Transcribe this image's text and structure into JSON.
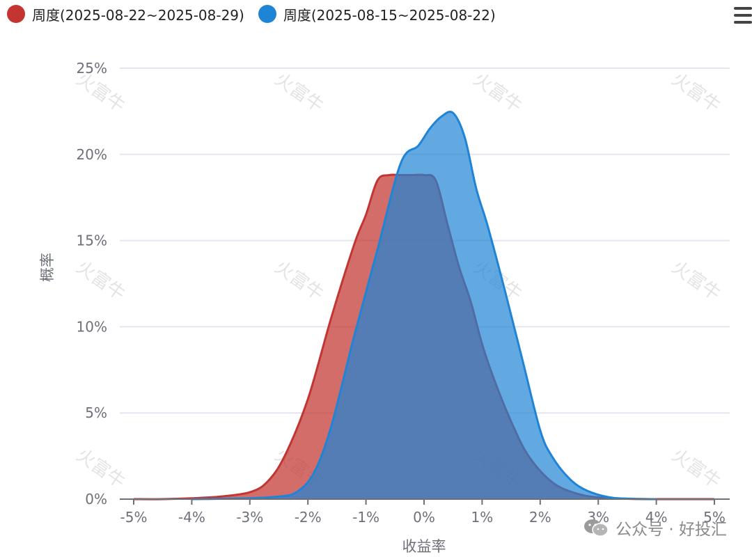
{
  "legend": {
    "series1_label": "周度(2025-08-22~2025-08-29)",
    "series2_label": "周度(2025-08-15~2025-08-22)"
  },
  "watermarks": [
    "火富牛"
  ],
  "footer": {
    "source_text": "公众号 · 好投汇"
  },
  "icons": {
    "menu": "hamburger-menu-icon",
    "wechat": "wechat-icon"
  },
  "chart_data": {
    "type": "area",
    "xlabel": "收益率",
    "ylabel": "概率",
    "x_ticks": [
      "-5%",
      "-4%",
      "-3%",
      "-2%",
      "-1%",
      "0%",
      "1%",
      "2%",
      "3%",
      "4%",
      "5%"
    ],
    "y_ticks": [
      "0%",
      "5%",
      "10%",
      "15%",
      "20%",
      "25%"
    ],
    "xlim": [
      -5,
      5
    ],
    "ylim": [
      0,
      25
    ],
    "grid": true,
    "legend_position": "top-left",
    "series": [
      {
        "name": "周度(2025-08-22~2025-08-29)",
        "color": "#c23531",
        "x": [
          -5,
          -4.5,
          -4,
          -3.5,
          -3,
          -2.7,
          -2.4,
          -2.0,
          -1.6,
          -1.2,
          -1.0,
          -0.8,
          -0.6,
          -0.4,
          -0.2,
          0,
          0.2,
          0.4,
          0.6,
          0.8,
          1.0,
          1.2,
          1.5,
          1.8,
          2.2,
          2.6,
          3.0,
          3.5,
          4,
          4.5,
          5
        ],
        "y": [
          0,
          0,
          0.05,
          0.15,
          0.4,
          1.0,
          2.5,
          5.8,
          10.5,
          14.8,
          16.5,
          18.5,
          18.8,
          18.8,
          18.8,
          18.8,
          18.5,
          16.0,
          13.5,
          11.5,
          9.0,
          7.0,
          4.5,
          2.5,
          1.0,
          0.35,
          0.1,
          0.02,
          0,
          0,
          0
        ]
      },
      {
        "name": "周度(2025-08-15~2025-08-22)",
        "color": "#1f84d6",
        "x": [
          -4,
          -3.5,
          -3,
          -2.5,
          -2.2,
          -1.9,
          -1.6,
          -1.2,
          -0.8,
          -0.4,
          -0.1,
          0.1,
          0.3,
          0.5,
          0.7,
          0.9,
          1.1,
          1.4,
          1.7,
          2.0,
          2.2,
          2.5,
          2.8,
          3.2,
          3.6,
          4
        ],
        "y": [
          0,
          0.02,
          0.05,
          0.15,
          0.4,
          1.5,
          4.2,
          9.5,
          14.5,
          19.5,
          20.5,
          21.5,
          22.2,
          22.4,
          21.0,
          18.0,
          15.8,
          12.0,
          8.0,
          4.0,
          2.5,
          1.2,
          0.5,
          0.1,
          0.02,
          0
        ]
      }
    ]
  }
}
